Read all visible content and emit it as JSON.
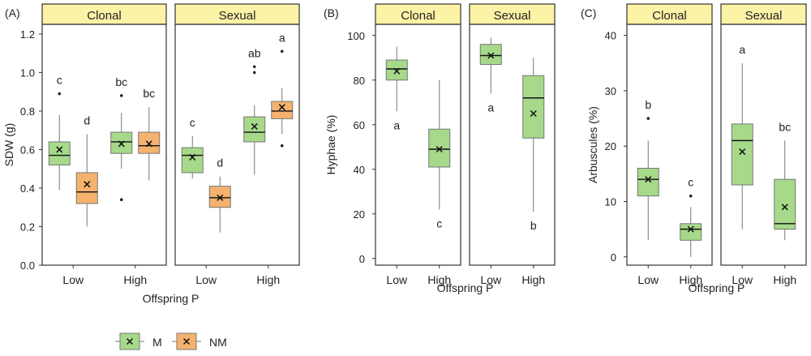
{
  "colors": {
    "M": "#a6d98a",
    "NM": "#f4b26e",
    "strip": "#fdf3a6",
    "border": "#333333",
    "whisker": "#777777"
  },
  "legend": {
    "entries": [
      {
        "key": "M",
        "label": "M"
      },
      {
        "key": "NM",
        "label": "NM"
      }
    ]
  },
  "chart_data": [
    {
      "type": "boxplot",
      "panel_label": "(A)",
      "ylabel": "SDW (g)",
      "xlabel": "Offspring P",
      "ylim": [
        0,
        1.25
      ],
      "yticks": [
        0.0,
        0.2,
        0.4,
        0.6,
        0.8,
        1.0,
        1.2
      ],
      "facets": [
        {
          "title": "Clonal",
          "groups": [
            "Low",
            "High"
          ],
          "boxes": [
            {
              "group": "Low",
              "treatment": "M",
              "min": 0.39,
              "q1": 0.52,
              "median": 0.57,
              "q3": 0.64,
              "max": 0.78,
              "mean": 0.6,
              "outliers": [
                0.89
              ],
              "letter": "c"
            },
            {
              "group": "Low",
              "treatment": "NM",
              "min": 0.2,
              "q1": 0.32,
              "median": 0.38,
              "q3": 0.48,
              "max": 0.68,
              "mean": 0.42,
              "outliers": [],
              "letter": "d"
            },
            {
              "group": "High",
              "treatment": "M",
              "min": 0.5,
              "q1": 0.58,
              "median": 0.64,
              "q3": 0.69,
              "max": 0.79,
              "mean": 0.63,
              "outliers": [
                0.34,
                0.88
              ],
              "letter": "bc"
            },
            {
              "group": "High",
              "treatment": "NM",
              "min": 0.44,
              "q1": 0.58,
              "median": 0.62,
              "q3": 0.69,
              "max": 0.82,
              "mean": 0.63,
              "outliers": [],
              "letter": "bc"
            }
          ]
        },
        {
          "title": "Sexual",
          "groups": [
            "Low",
            "High"
          ],
          "boxes": [
            {
              "group": "Low",
              "treatment": "M",
              "min": 0.45,
              "q1": 0.48,
              "median": 0.57,
              "q3": 0.61,
              "max": 0.67,
              "mean": 0.56,
              "outliers": [],
              "letter": "c"
            },
            {
              "group": "Low",
              "treatment": "NM",
              "min": 0.17,
              "q1": 0.3,
              "median": 0.35,
              "q3": 0.41,
              "max": 0.46,
              "mean": 0.35,
              "outliers": [],
              "letter": "d"
            },
            {
              "group": "High",
              "treatment": "M",
              "min": 0.47,
              "q1": 0.64,
              "median": 0.69,
              "q3": 0.77,
              "max": 0.83,
              "mean": 0.72,
              "outliers": [
                1.0,
                1.03
              ],
              "letter": "ab"
            },
            {
              "group": "High",
              "treatment": "NM",
              "min": 0.68,
              "q1": 0.76,
              "median": 0.8,
              "q3": 0.85,
              "max": 0.92,
              "mean": 0.82,
              "outliers": [
                0.62,
                1.11
              ],
              "letter": "a"
            }
          ]
        }
      ]
    },
    {
      "type": "boxplot",
      "panel_label": "(B)",
      "ylabel": "Hyphae (%)",
      "xlabel": "Offspring P",
      "ylim": [
        -3,
        105
      ],
      "yticks": [
        0,
        20,
        40,
        60,
        80,
        100
      ],
      "facets": [
        {
          "title": "Clonal",
          "groups": [
            "Low",
            "High"
          ],
          "boxes": [
            {
              "group": "Low",
              "treatment": "M",
              "min": 66,
              "q1": 80,
              "median": 85,
              "q3": 89,
              "max": 95,
              "mean": 84,
              "outliers": [],
              "letter": "a"
            },
            {
              "group": "High",
              "treatment": "M",
              "min": 22,
              "q1": 41,
              "median": 49,
              "q3": 58,
              "max": 80,
              "mean": 49,
              "outliers": [],
              "letter": "c"
            }
          ]
        },
        {
          "title": "Sexual",
          "groups": [
            "Low",
            "High"
          ],
          "boxes": [
            {
              "group": "Low",
              "treatment": "M",
              "min": 74,
              "q1": 87,
              "median": 91,
              "q3": 96,
              "max": 99,
              "mean": 91,
              "outliers": [],
              "letter": "a"
            },
            {
              "group": "High",
              "treatment": "M",
              "min": 21,
              "q1": 54,
              "median": 72,
              "q3": 82,
              "max": 90,
              "mean": 65,
              "outliers": [],
              "letter": "b"
            }
          ]
        }
      ]
    },
    {
      "type": "boxplot",
      "panel_label": "(C)",
      "ylabel": "Arbuscules (%)",
      "xlabel": "Offspring P",
      "ylim": [
        -1.5,
        42
      ],
      "yticks": [
        0,
        10,
        20,
        30,
        40
      ],
      "facets": [
        {
          "title": "Clonal",
          "groups": [
            "Low",
            "High"
          ],
          "boxes": [
            {
              "group": "Low",
              "treatment": "M",
              "min": 3,
              "q1": 11,
              "median": 14,
              "q3": 16,
              "max": 21,
              "mean": 14,
              "outliers": [
                25
              ],
              "letter": "b"
            },
            {
              "group": "High",
              "treatment": "M",
              "min": 0,
              "q1": 3,
              "median": 5,
              "q3": 6,
              "max": 9,
              "mean": 5,
              "outliers": [
                11
              ],
              "letter": "c"
            }
          ]
        },
        {
          "title": "Sexual",
          "groups": [
            "Low",
            "High"
          ],
          "boxes": [
            {
              "group": "Low",
              "treatment": "M",
              "min": 5,
              "q1": 13,
              "median": 21,
              "q3": 24,
              "max": 35,
              "mean": 19,
              "outliers": [],
              "letter": "a"
            },
            {
              "group": "High",
              "treatment": "M",
              "min": 3,
              "q1": 5,
              "median": 6,
              "q3": 14,
              "max": 21,
              "mean": 9,
              "outliers": [],
              "letter": "bc"
            }
          ]
        }
      ]
    }
  ]
}
